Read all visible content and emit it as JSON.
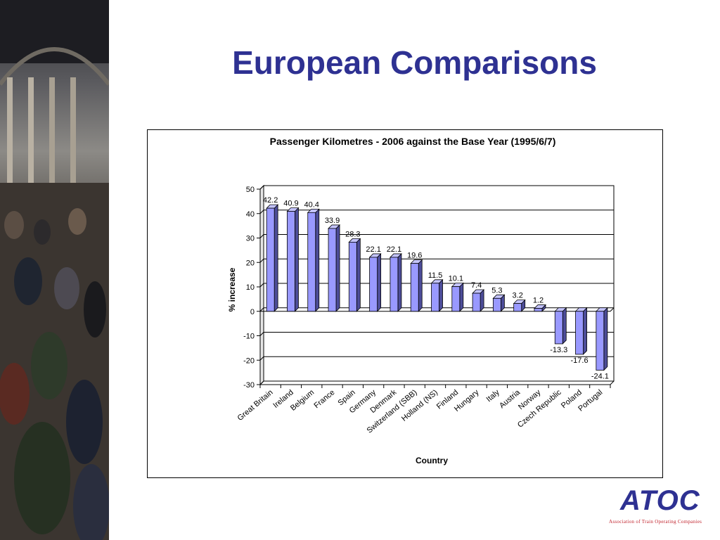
{
  "slide": {
    "title": "European Comparisons"
  },
  "logo": {
    "name": "ATOC",
    "subtitle": "Association of Train Operating Companies"
  },
  "chart_data": {
    "type": "bar",
    "title": "Passenger Kilometres - 2006 against the Base Year (1995/6/7)",
    "xlabel": "Country",
    "ylabel": "% increase",
    "ylim": [
      -30,
      50
    ],
    "yticks": [
      50,
      40,
      30,
      20,
      10,
      0,
      -10,
      -20,
      -30
    ],
    "grid": true,
    "legend": "none",
    "categories": [
      "Great Britain",
      "Ireland",
      "Belgium",
      "France",
      "Spain",
      "Germany",
      "Denmark",
      "Switzerland (SBB)",
      "Holland (NS)",
      "Finland",
      "Hungary",
      "Italy",
      "Austria",
      "Norway",
      "Czech Republic",
      "Poland",
      "Portugal"
    ],
    "values": [
      42.2,
      40.9,
      40.4,
      33.9,
      28.3,
      22.1,
      22.1,
      19.6,
      11.5,
      10.1,
      7.4,
      5.3,
      3.2,
      1.2,
      -13.3,
      -17.6,
      -24.1
    ],
    "colors": {
      "bar_front": "#9999ff",
      "bar_side": "#4d4d99",
      "bar_top": "#c4c4ff",
      "title": "#2e3192"
    }
  }
}
